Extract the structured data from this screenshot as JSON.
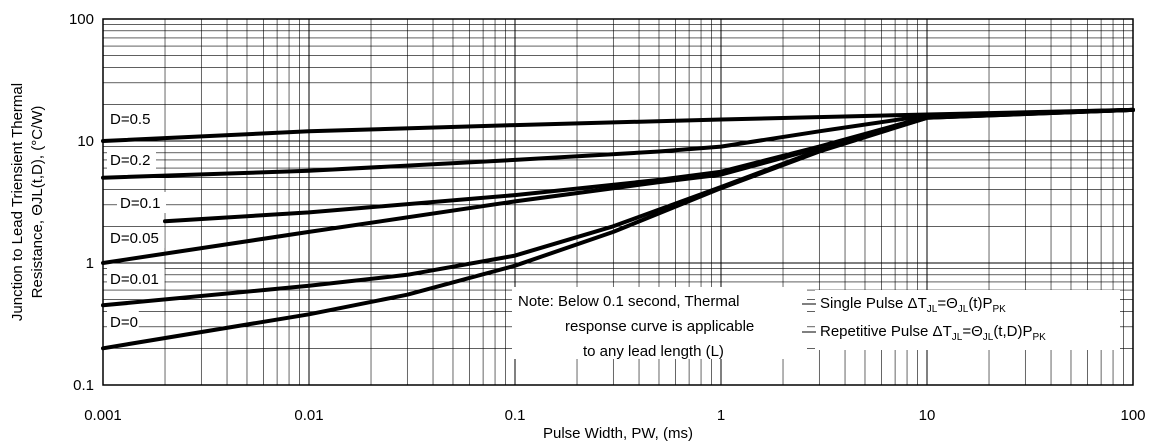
{
  "chart_data": {
    "type": "line",
    "title": "",
    "xlabel": "Pulse Width, PW, (ms)",
    "ylabel_line1": "Junction to Lead Triensient Thermal",
    "ylabel_line2": "Resistance, ΘJL(t,D),  (°C/W)",
    "xscale": "log",
    "yscale": "log",
    "xlim": [
      0.001,
      100
    ],
    "ylim": [
      0.1,
      100
    ],
    "x_ticks": [
      "0.001",
      "0.01",
      "0.1",
      "1",
      "10",
      "100"
    ],
    "y_ticks": [
      "0.1",
      "1",
      "10",
      "100"
    ],
    "grid": true,
    "series": [
      {
        "name": "D=0.5",
        "x": [
          0.001,
          0.01,
          0.1,
          1,
          10,
          100
        ],
        "y": [
          10,
          12,
          13.5,
          15,
          16.5,
          18
        ]
      },
      {
        "name": "D=0.2",
        "x": [
          0.001,
          0.01,
          0.1,
          0.5,
          1,
          3,
          10,
          100
        ],
        "y": [
          5,
          5.7,
          7,
          8.2,
          9,
          12,
          16.2,
          18
        ]
      },
      {
        "name": "D=0.1",
        "x": [
          0.002,
          0.01,
          0.1,
          0.5,
          1,
          3,
          10,
          100
        ],
        "y": [
          2.2,
          2.6,
          3.6,
          4.8,
          5.6,
          9,
          15.8,
          18
        ]
      },
      {
        "name": "D=0.05",
        "x": [
          0.001,
          0.01,
          0.1,
          0.5,
          1,
          3,
          10,
          100
        ],
        "y": [
          1,
          1.8,
          3.2,
          4.6,
          5.3,
          8.8,
          15.8,
          18
        ]
      },
      {
        "name": "D=0.01",
        "x": [
          0.001,
          0.01,
          0.03,
          0.1,
          0.3,
          1,
          3,
          10,
          100
        ],
        "y": [
          0.45,
          0.65,
          0.8,
          1.15,
          2,
          4.2,
          8.4,
          15.5,
          18
        ]
      },
      {
        "name": "D=0",
        "x": [
          0.001,
          0.01,
          0.03,
          0.1,
          0.3,
          1,
          3,
          10,
          100
        ],
        "y": [
          0.2,
          0.38,
          0.55,
          0.95,
          1.8,
          4.1,
          8.2,
          15.5,
          18
        ]
      }
    ],
    "series_label_color": "#000000",
    "line_color": "#000000"
  },
  "note": {
    "line1": "Note: Below 0.1 second, Thermal",
    "line2": "response curve is applicable",
    "line3": "to any lead length (L)"
  },
  "legend": {
    "single_pulse": "Single Pulse ΔTⱼʟ=Θⱼʟ(t)Pₚₖ",
    "single_prefix": "Single Pulse ΔT",
    "single_sub1": "JL",
    "single_eq": "=Θ",
    "single_sub2": "JL",
    "single_mid": "(t)P",
    "single_sub3": "PK",
    "repetitive_prefix": "Repetitive Pulse ΔT",
    "repetitive_sub1": "JL",
    "repetitive_eq": "=Θ",
    "repetitive_sub2": "JL",
    "repetitive_mid": "(t,D)P",
    "repetitive_sub3": "PK"
  }
}
